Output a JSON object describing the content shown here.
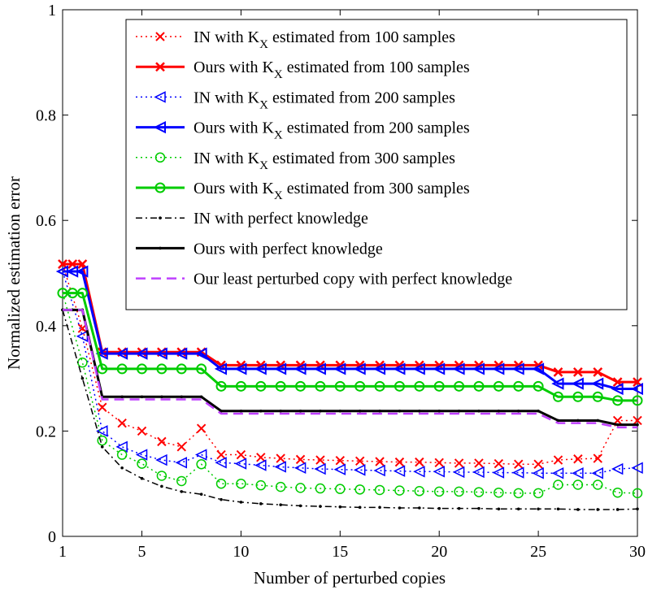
{
  "chart_data": {
    "type": "line",
    "title": "",
    "xlabel": "Number of perturbed copies",
    "ylabel": "Normalized estimation error",
    "xlim": [
      1,
      30
    ],
    "ylim": [
      0,
      1
    ],
    "xticks": [
      1,
      5,
      10,
      15,
      20,
      25,
      30
    ],
    "yticks": [
      0,
      0.2,
      0.4,
      0.6,
      0.8,
      1
    ],
    "ytick_labels": [
      "0",
      "0.2",
      "0.4",
      "0.6",
      "0.8",
      "1"
    ],
    "x_secondary": [
      1,
      2,
      3,
      4,
      5,
      6,
      7,
      8,
      9,
      10,
      11,
      12,
      13,
      14,
      15,
      16,
      17,
      18,
      19,
      20,
      21,
      22,
      23,
      24,
      25,
      26,
      27,
      28,
      29,
      30
    ],
    "x_primary": [
      1,
      1.5,
      2,
      3,
      4,
      5,
      6,
      7,
      8,
      9,
      10,
      11,
      12,
      13,
      14,
      15,
      16,
      17,
      18,
      19,
      20,
      21,
      22,
      23,
      24,
      25,
      26,
      27,
      28,
      29,
      30
    ],
    "legend_position": "top-right",
    "series": [
      {
        "legend_main": "IN with K",
        "legend_sub": "X",
        "legend_rest": " estimated from 100 samples",
        "color": "#ff0000",
        "linestyle": "dotted",
        "marker": "x",
        "xref": "x_secondary",
        "values": [
          0.517,
          0.395,
          0.245,
          0.215,
          0.2,
          0.18,
          0.17,
          0.205,
          0.155,
          0.155,
          0.15,
          0.148,
          0.146,
          0.145,
          0.144,
          0.143,
          0.142,
          0.141,
          0.141,
          0.14,
          0.139,
          0.139,
          0.138,
          0.137,
          0.137,
          0.145,
          0.147,
          0.148,
          0.22,
          0.22
        ]
      },
      {
        "legend_main": "Ours with K",
        "legend_sub": "X",
        "legend_rest": " estimated from 100 samples",
        "color": "#ff0000",
        "linestyle": "solid",
        "marker": "x",
        "xref": "x_primary",
        "values": [
          0.517,
          0.517,
          0.517,
          0.35,
          0.35,
          0.35,
          0.35,
          0.35,
          0.35,
          0.325,
          0.325,
          0.325,
          0.325,
          0.325,
          0.325,
          0.325,
          0.325,
          0.325,
          0.325,
          0.325,
          0.325,
          0.325,
          0.325,
          0.325,
          0.325,
          0.325,
          0.312,
          0.312,
          0.312,
          0.293,
          0.293
        ]
      },
      {
        "legend_main": "IN with K",
        "legend_sub": "X",
        "legend_rest": " estimated from 200 samples",
        "color": "#0000ff",
        "linestyle": "dotted",
        "marker": "tri",
        "xref": "x_secondary",
        "values": [
          0.503,
          0.38,
          0.2,
          0.17,
          0.155,
          0.145,
          0.14,
          0.155,
          0.14,
          0.138,
          0.135,
          0.132,
          0.13,
          0.128,
          0.127,
          0.126,
          0.125,
          0.124,
          0.123,
          0.123,
          0.122,
          0.122,
          0.121,
          0.121,
          0.12,
          0.12,
          0.12,
          0.12,
          0.128,
          0.13
        ]
      },
      {
        "legend_main": "Ours with K",
        "legend_sub": "X",
        "legend_rest": " estimated from 200 samples",
        "color": "#0000ff",
        "linestyle": "solid",
        "marker": "tri",
        "xref": "x_primary",
        "values": [
          0.503,
          0.503,
          0.503,
          0.347,
          0.347,
          0.347,
          0.347,
          0.347,
          0.347,
          0.318,
          0.318,
          0.318,
          0.318,
          0.318,
          0.318,
          0.318,
          0.318,
          0.318,
          0.318,
          0.318,
          0.318,
          0.318,
          0.318,
          0.318,
          0.318,
          0.318,
          0.29,
          0.29,
          0.29,
          0.28,
          0.28
        ]
      },
      {
        "legend_main": "IN with K",
        "legend_sub": "X",
        "legend_rest": " estimated from 300 samples",
        "color": "#00cc00",
        "linestyle": "dotted",
        "marker": "o",
        "xref": "x_secondary",
        "values": [
          0.462,
          0.33,
          0.182,
          0.155,
          0.138,
          0.115,
          0.105,
          0.137,
          0.1,
          0.1,
          0.097,
          0.094,
          0.092,
          0.091,
          0.09,
          0.089,
          0.088,
          0.087,
          0.086,
          0.085,
          0.085,
          0.084,
          0.083,
          0.082,
          0.082,
          0.098,
          0.098,
          0.098,
          0.083,
          0.082
        ]
      },
      {
        "legend_main": "Ours with K",
        "legend_sub": "X",
        "legend_rest": " estimated from 300 samples",
        "color": "#00cc00",
        "linestyle": "solid",
        "marker": "o",
        "xref": "x_primary",
        "values": [
          0.462,
          0.462,
          0.462,
          0.318,
          0.318,
          0.318,
          0.318,
          0.318,
          0.318,
          0.285,
          0.285,
          0.285,
          0.285,
          0.285,
          0.285,
          0.285,
          0.285,
          0.285,
          0.285,
          0.285,
          0.285,
          0.285,
          0.285,
          0.285,
          0.285,
          0.285,
          0.265,
          0.265,
          0.265,
          0.258,
          0.258
        ]
      },
      {
        "legend_main": "IN with perfect knowledge",
        "legend_sub": "",
        "legend_rest": "",
        "color": "#000000",
        "linestyle": "dashdot",
        "marker": "dot",
        "xref": "x_secondary",
        "values": [
          0.43,
          0.3,
          0.17,
          0.13,
          0.11,
          0.095,
          0.085,
          0.08,
          0.07,
          0.065,
          0.062,
          0.06,
          0.058,
          0.057,
          0.056,
          0.055,
          0.055,
          0.054,
          0.054,
          0.053,
          0.053,
          0.053,
          0.052,
          0.052,
          0.052,
          0.052,
          0.051,
          0.051,
          0.051,
          0.052
        ]
      },
      {
        "legend_main": "Ours with perfect knowledge",
        "legend_sub": "",
        "legend_rest": "",
        "color": "#000000",
        "linestyle": "solid",
        "marker": "dot",
        "xref": "x_primary",
        "values": [
          0.43,
          0.43,
          0.43,
          0.265,
          0.265,
          0.265,
          0.265,
          0.265,
          0.265,
          0.238,
          0.238,
          0.238,
          0.238,
          0.238,
          0.238,
          0.238,
          0.238,
          0.238,
          0.238,
          0.238,
          0.238,
          0.238,
          0.238,
          0.238,
          0.238,
          0.238,
          0.22,
          0.22,
          0.22,
          0.212,
          0.212
        ]
      },
      {
        "legend_main": "Our least perturbed copy with perfect knowledge",
        "legend_sub": "",
        "legend_rest": "",
        "color": "#bf40ff",
        "linestyle": "dashed",
        "marker": "none",
        "xref": "x_primary",
        "values": [
          0.43,
          0.43,
          0.43,
          0.26,
          0.26,
          0.26,
          0.26,
          0.26,
          0.26,
          0.233,
          0.233,
          0.233,
          0.233,
          0.233,
          0.233,
          0.233,
          0.233,
          0.233,
          0.233,
          0.233,
          0.233,
          0.233,
          0.233,
          0.233,
          0.233,
          0.233,
          0.215,
          0.215,
          0.215,
          0.207,
          0.207
        ]
      }
    ]
  }
}
